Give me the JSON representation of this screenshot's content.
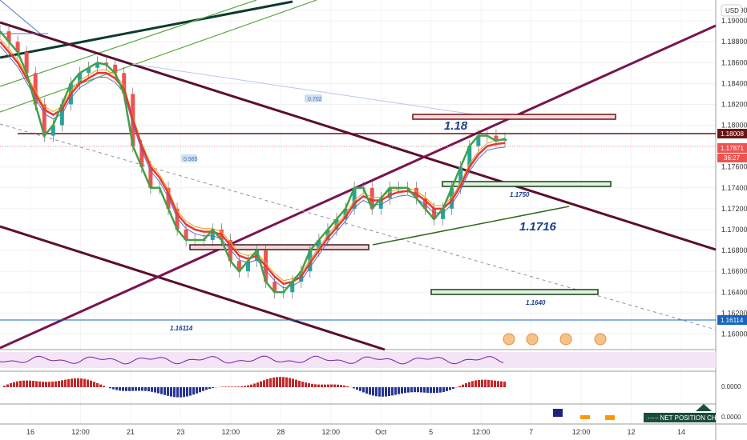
{
  "chart_data": {
    "type": "line",
    "title": "",
    "currency_label": "USD",
    "y_range": [
      1.1585,
      1.192
    ],
    "y_ticks": [
      "1.19100",
      "1.19000",
      "1.18800",
      "1.18600",
      "1.18400",
      "1.18200",
      "1.18000",
      "1.17800",
      "1.17600",
      "1.17400",
      "1.17200",
      "1.17000",
      "1.16800",
      "1.16600",
      "1.16400",
      "1.16200",
      "1.16000"
    ],
    "x_ticks": [
      "16",
      "12:00",
      "21",
      "23",
      "12:00",
      "28",
      "12:00",
      "Oct",
      "5",
      "12:00",
      "7",
      "12:00",
      "12",
      "14"
    ],
    "price_badges": [
      {
        "value": "1.18008",
        "color": "#6b1414"
      },
      {
        "value": "1.17871",
        "color": "#ef5350"
      },
      {
        "value": "36:27",
        "color": "#ef5350"
      },
      {
        "value": "1.16114",
        "color": "#1565c0"
      }
    ],
    "annotations": {
      "level_118": "1.18",
      "level_11716": "1.1716",
      "level_1175": "1.1750",
      "level_1164": "1.1640",
      "level_116114": "1.16114",
      "fib_label": "0.702",
      "small_label": "0.565"
    },
    "price_series": {
      "name": "",
      "y": [
        1.189,
        1.188,
        1.187,
        1.185,
        1.182,
        1.179,
        1.18,
        1.182,
        1.184,
        1.185,
        1.1855,
        1.186,
        1.1858,
        1.185,
        1.183,
        1.178,
        1.176,
        1.174,
        1.174,
        1.172,
        1.17,
        1.169,
        1.169,
        1.169,
        1.17,
        1.169,
        1.167,
        1.166,
        1.167,
        1.168,
        1.165,
        1.164,
        1.164,
        1.165,
        1.166,
        1.168,
        1.169,
        1.17,
        1.171,
        1.172,
        1.174,
        1.174,
        1.172,
        1.173,
        1.174,
        1.174,
        1.174,
        1.173,
        1.172,
        1.171,
        1.172,
        1.174,
        1.176,
        1.178,
        1.179,
        1.179,
        1.1785,
        1.1787
      ]
    },
    "ma_series": {
      "name": "",
      "y": [
        1.188,
        1.187,
        1.186,
        1.1845,
        1.183,
        1.1815,
        1.181,
        1.1815,
        1.183,
        1.184,
        1.1845,
        1.185,
        1.185,
        1.1845,
        1.1835,
        1.1805,
        1.178,
        1.176,
        1.175,
        1.1735,
        1.1715,
        1.1705,
        1.17,
        1.1698,
        1.1698,
        1.1695,
        1.1685,
        1.1675,
        1.1672,
        1.1675,
        1.1665,
        1.1655,
        1.1648,
        1.165,
        1.1655,
        1.1668,
        1.168,
        1.1692,
        1.1702,
        1.1712,
        1.1725,
        1.1732,
        1.1728,
        1.1728,
        1.1733,
        1.1736,
        1.1737,
        1.1734,
        1.1728,
        1.172,
        1.172,
        1.1728,
        1.1742,
        1.176,
        1.1772,
        1.178,
        1.1782,
        1.1783
      ]
    },
    "grid": true
  }
}
